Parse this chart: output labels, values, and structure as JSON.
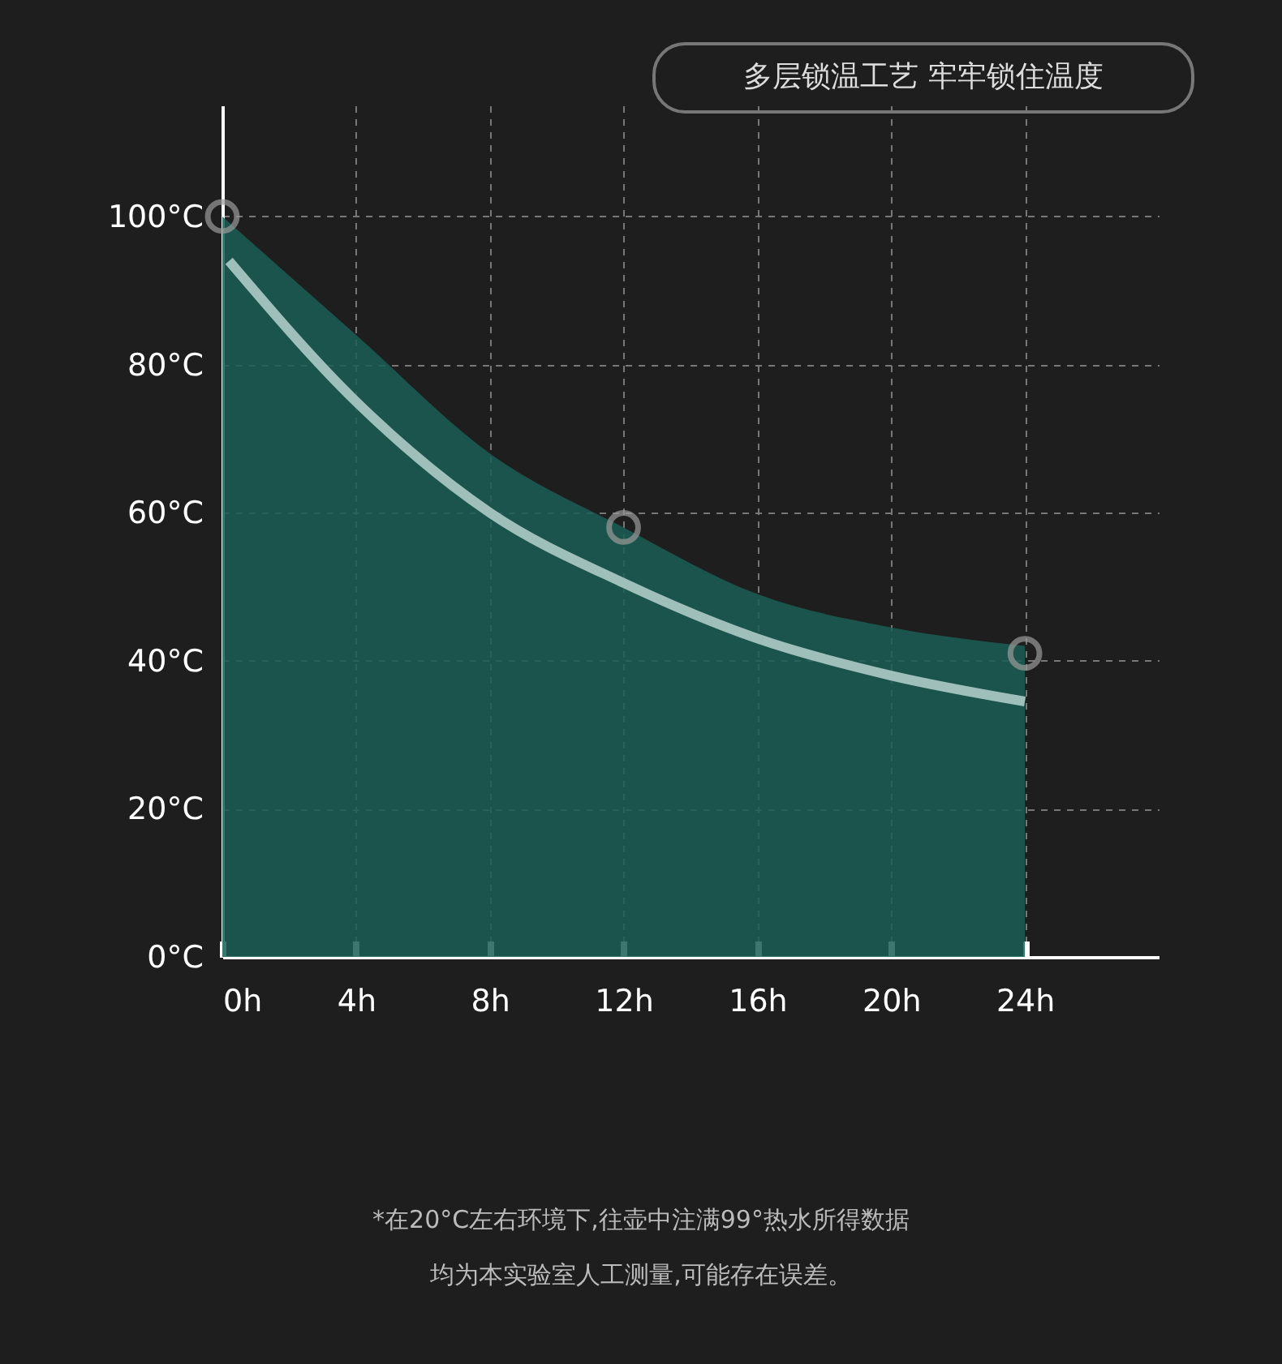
{
  "chart_data": {
    "type": "line",
    "title": "多层锁温工艺  牢牢锁住温度",
    "annotations": [
      "*在20°C左右环境下,往壶中注满99°热水所得数据",
      "均为本实验室人工测量,可能存在误差。"
    ],
    "xlim": [
      0,
      28
    ],
    "ylim": [
      0,
      115
    ],
    "xticks": [
      {
        "value": 0,
        "label": "0h"
      },
      {
        "value": 4,
        "label": "4h"
      },
      {
        "value": 8,
        "label": "8h"
      },
      {
        "value": 12,
        "label": "12h"
      },
      {
        "value": 16,
        "label": "16h"
      },
      {
        "value": 20,
        "label": "20h"
      },
      {
        "value": 24,
        "label": "24h"
      }
    ],
    "yticks": [
      {
        "value": 0,
        "label": "0°C"
      },
      {
        "value": 20,
        "label": "20°C"
      },
      {
        "value": 40,
        "label": "40°C"
      },
      {
        "value": 60,
        "label": "60°C"
      },
      {
        "value": 80,
        "label": "80°C"
      },
      {
        "value": 100,
        "label": "100°C"
      }
    ],
    "grid": true,
    "series": [
      {
        "type": "area",
        "color": "#1b5e55",
        "x": [
          0,
          4,
          8,
          12,
          16,
          20,
          24
        ],
        "values": [
          100,
          84,
          68,
          58,
          49,
          44.5,
          42
        ]
      },
      {
        "color": "#9fbfba",
        "x": [
          0.2,
          4,
          8,
          12,
          16,
          20,
          24
        ],
        "values": [
          94,
          75,
          60,
          50.5,
          43,
          38,
          34.5
        ]
      },
      {
        "type": "scatter",
        "marker": "circle",
        "color": "#9a9a9a",
        "x": [
          0,
          12,
          24
        ],
        "values": [
          100,
          58,
          41
        ]
      }
    ]
  }
}
